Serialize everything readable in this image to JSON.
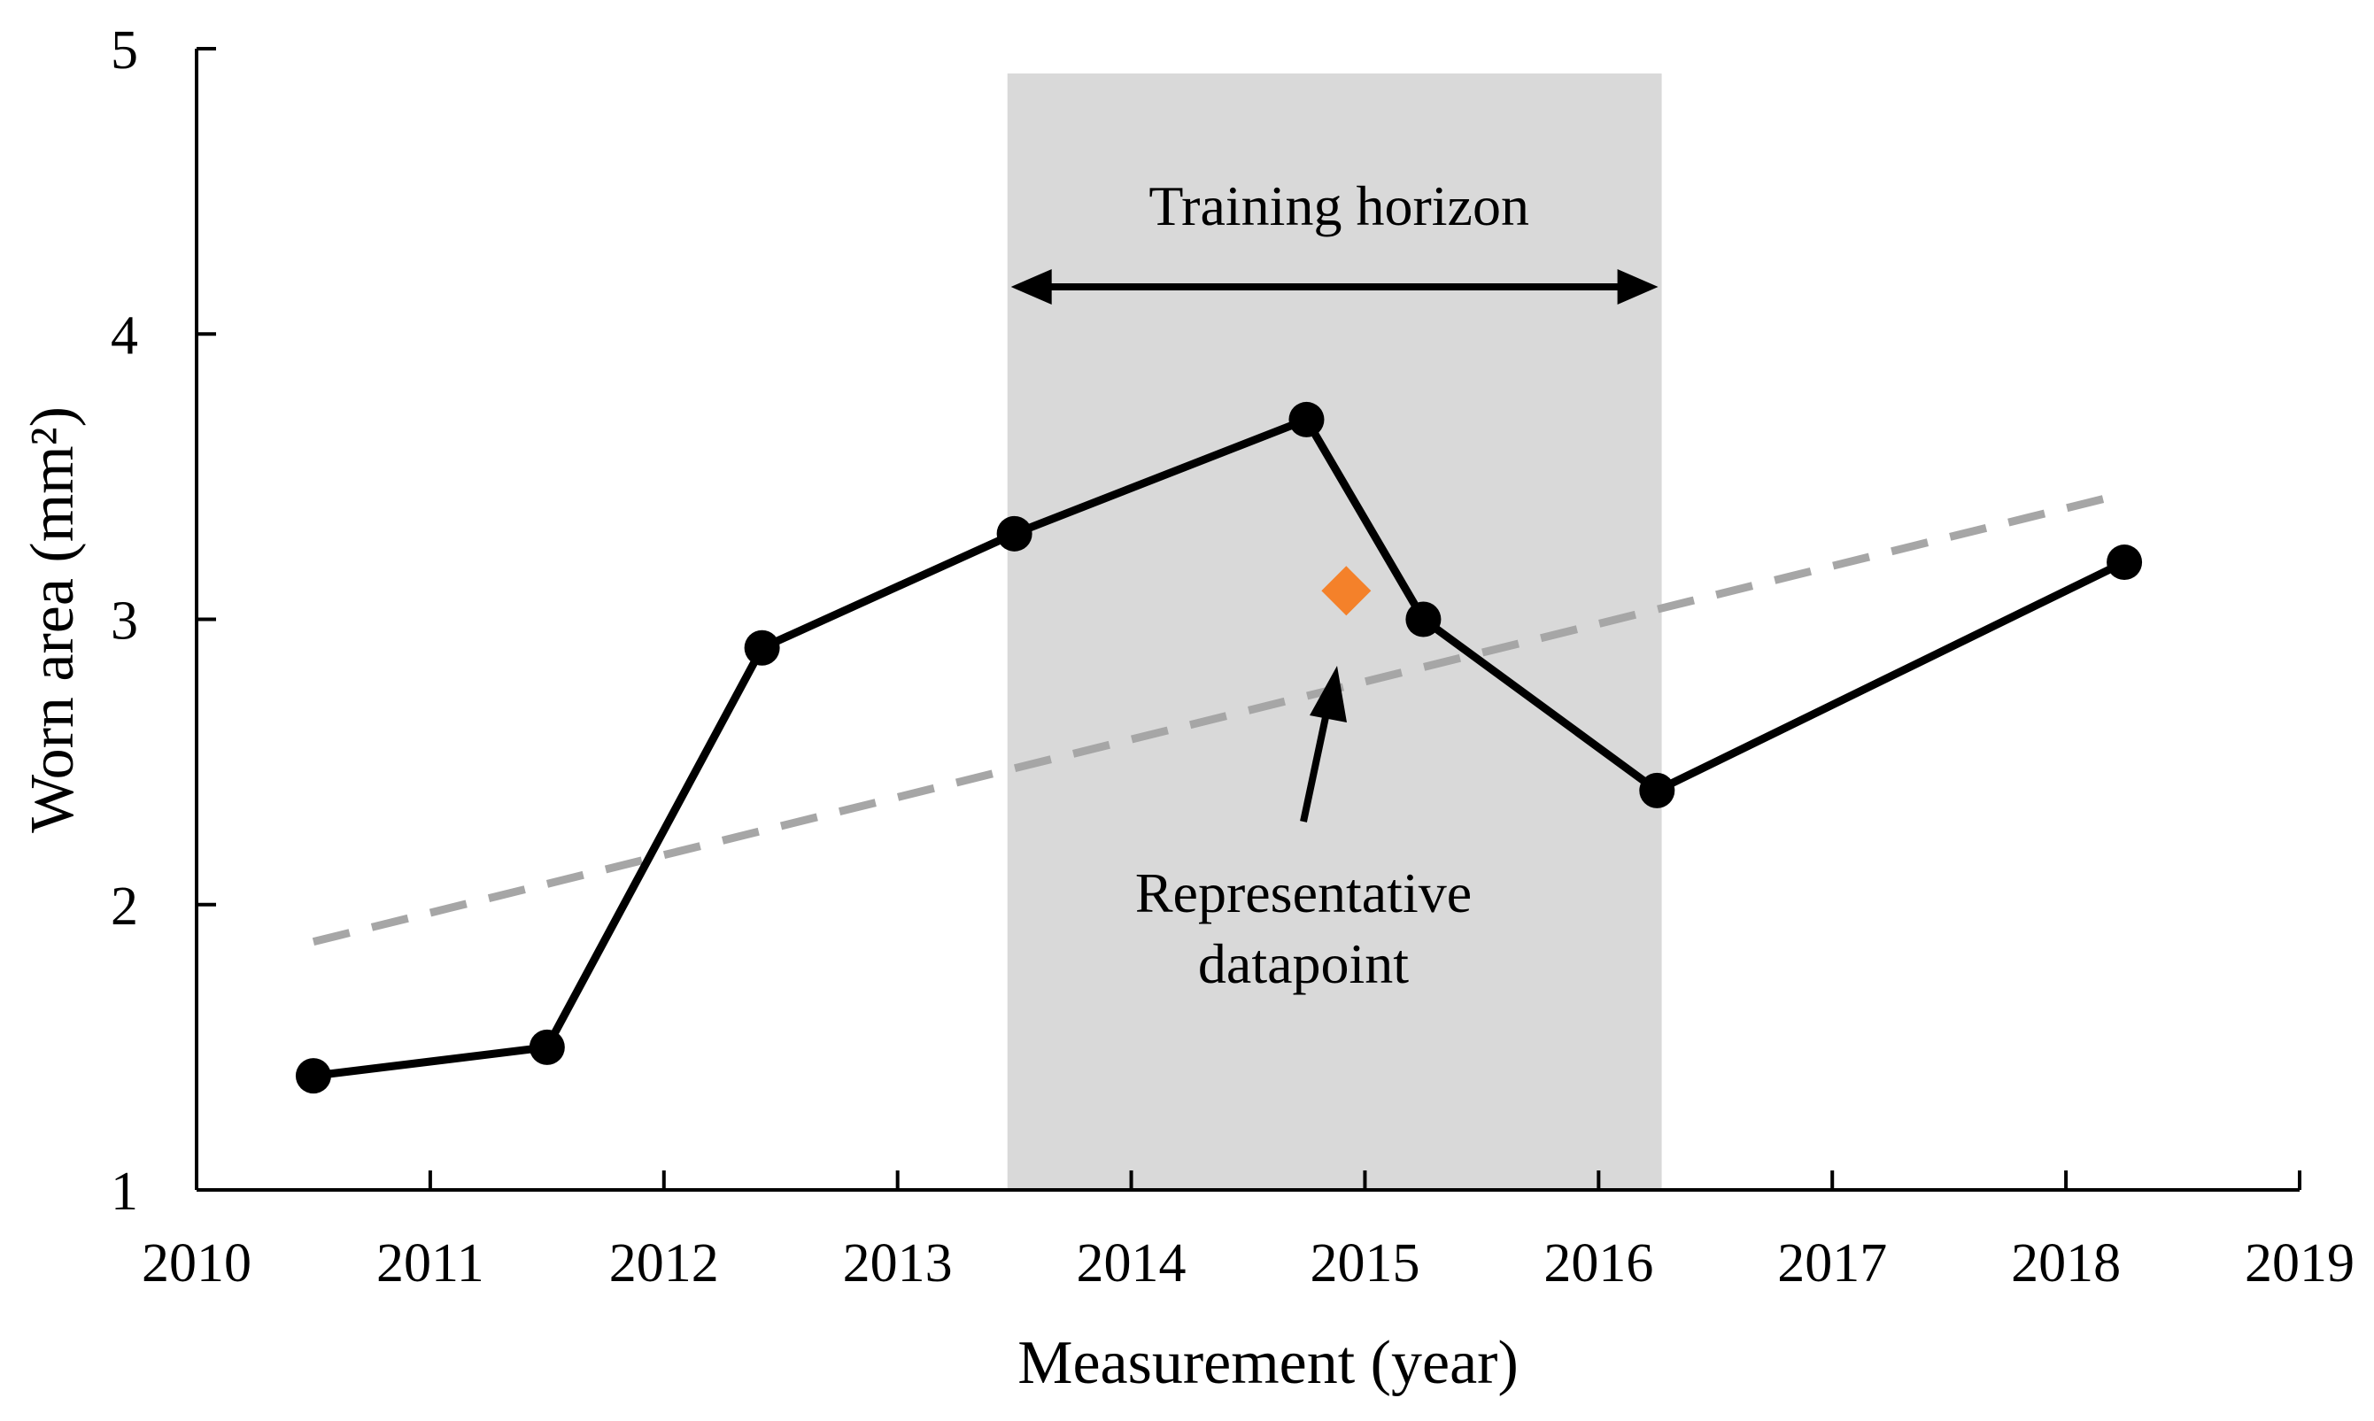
{
  "chart_data": {
    "type": "line",
    "xlabel": "Measurement (year)",
    "ylabel": "Worn area (mm²)",
    "xlim": [
      2010,
      2019
    ],
    "ylim": [
      1,
      5
    ],
    "x_ticks": [
      "2010",
      "2011",
      "2012",
      "2013",
      "2014",
      "2015",
      "2016",
      "2017",
      "2018",
      "2019"
    ],
    "y_ticks": [
      "1",
      "2",
      "3",
      "4",
      "5"
    ],
    "grid": false,
    "series": [
      {
        "style": "solid-black-with-markers",
        "color": "#000000",
        "x": [
          2010.5,
          2011.5,
          2012.42,
          2013.5,
          2014.75,
          2015.25,
          2016.25,
          2018.25
        ],
        "y": [
          1.4,
          1.5,
          2.9,
          3.3,
          3.7,
          3.0,
          2.4,
          3.2
        ]
      },
      {
        "style": "dashed-trend",
        "color": "#a6a6a6",
        "x": [
          2010.5,
          2018.25
        ],
        "y": [
          1.87,
          3.44
        ]
      }
    ],
    "highlight_region": {
      "x_range": [
        2013.47,
        2016.27
      ],
      "color": "#d9d9d9",
      "label": "Training horizon"
    },
    "representative_point": {
      "x": 2014.92,
      "y": 3.1,
      "color": "#f4812a",
      "label_line1": "Representative",
      "label_line2": "datapoint"
    }
  }
}
